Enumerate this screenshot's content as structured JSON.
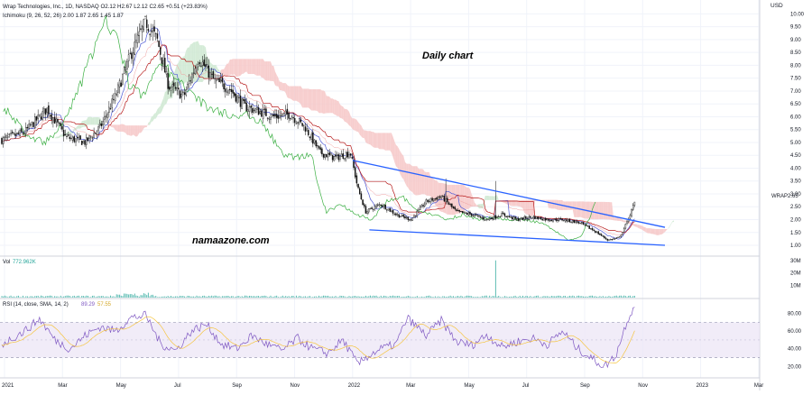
{
  "header": {
    "title_line": "Wrap Technologies, Inc., 1D, NASDAQ  O2.12  H2.67  L2.12  C2.65  +0.51 (+23.83%)",
    "ichimoku_line": "Ichimoku (9, 26, 52, 26)  2.00  1.87  2.65  1.45  1.87"
  },
  "annotations": {
    "chart_label": "Daily chart",
    "watermark": "namaazone.com",
    "price_tag": "WRAP"
  },
  "volume_panel": {
    "label": "Vol",
    "value": "772.962K"
  },
  "rsi_panel": {
    "label": "RSI (14, close, SMA, 14, 2)",
    "rsi_value": "89.29",
    "sma_value": "57.55"
  },
  "colors": {
    "candle": "#111111",
    "trendline": "#2962ff",
    "tenkan": "#4f5bd5",
    "kijun": "#b71c1c",
    "chikou": "#3cb043",
    "cloud_bear": "#f6c6c6",
    "cloud_bull": "#cde8d0",
    "rsi_line": "#7e57c2",
    "rsi_sma": "#f5c542",
    "rsi_band": "#ede7f6",
    "volume": "#26a69a"
  },
  "chart_data": {
    "type": "candlestick",
    "symbol": "WRAP",
    "yunit": "USD",
    "price_ticks": [
      "10.00",
      "9.50",
      "9.00",
      "8.50",
      "8.00",
      "7.50",
      "7.00",
      "6.50",
      "6.00",
      "5.50",
      "5.00",
      "4.50",
      "4.00",
      "3.50",
      "3.00",
      "2.50",
      "2.00",
      "1.50",
      "1.00"
    ],
    "price_range": [
      0.72,
      10.4
    ],
    "last_price": "2.65",
    "x_labels": [
      "2021",
      "Mar",
      "May",
      "Jul",
      "Sep",
      "Nov",
      "2022",
      "Mar",
      "May",
      "Jul",
      "Sep",
      "Nov",
      "2023",
      "Mar"
    ],
    "price_path": [
      {
        "x": 0.0,
        "y": 5.1
      },
      {
        "x": 0.03,
        "y": 5.4
      },
      {
        "x": 0.06,
        "y": 6.3
      },
      {
        "x": 0.085,
        "y": 5.2
      },
      {
        "x": 0.11,
        "y": 5.0
      },
      {
        "x": 0.13,
        "y": 5.6
      },
      {
        "x": 0.15,
        "y": 6.8
      },
      {
        "x": 0.17,
        "y": 8.4
      },
      {
        "x": 0.19,
        "y": 9.7
      },
      {
        "x": 0.205,
        "y": 9.0
      },
      {
        "x": 0.22,
        "y": 7.2
      },
      {
        "x": 0.24,
        "y": 6.8
      },
      {
        "x": 0.26,
        "y": 8.3
      },
      {
        "x": 0.28,
        "y": 7.4
      },
      {
        "x": 0.3,
        "y": 7.1
      },
      {
        "x": 0.32,
        "y": 6.4
      },
      {
        "x": 0.34,
        "y": 6.2
      },
      {
        "x": 0.36,
        "y": 6.0
      },
      {
        "x": 0.38,
        "y": 6.1
      },
      {
        "x": 0.4,
        "y": 5.6
      },
      {
        "x": 0.42,
        "y": 4.6
      },
      {
        "x": 0.44,
        "y": 4.4
      },
      {
        "x": 0.46,
        "y": 4.6
      },
      {
        "x": 0.47,
        "y": 3.2
      },
      {
        "x": 0.48,
        "y": 2.3
      },
      {
        "x": 0.5,
        "y": 2.6
      },
      {
        "x": 0.52,
        "y": 2.2
      },
      {
        "x": 0.54,
        "y": 2.0
      },
      {
        "x": 0.56,
        "y": 2.7
      },
      {
        "x": 0.58,
        "y": 2.9
      },
      {
        "x": 0.6,
        "y": 2.3
      },
      {
        "x": 0.62,
        "y": 2.2
      },
      {
        "x": 0.64,
        "y": 2.0
      },
      {
        "x": 0.66,
        "y": 2.2
      },
      {
        "x": 0.68,
        "y": 2.0
      },
      {
        "x": 0.7,
        "y": 2.1
      },
      {
        "x": 0.72,
        "y": 2.0
      },
      {
        "x": 0.74,
        "y": 2.0
      },
      {
        "x": 0.76,
        "y": 1.9
      },
      {
        "x": 0.78,
        "y": 1.6
      },
      {
        "x": 0.8,
        "y": 1.2
      },
      {
        "x": 0.815,
        "y": 1.3
      },
      {
        "x": 0.825,
        "y": 1.9
      },
      {
        "x": 0.835,
        "y": 2.65
      }
    ],
    "trendlines": [
      {
        "name": "upper",
        "from": {
          "x": 0.463,
          "y": 4.3
        },
        "to": {
          "x": 0.875,
          "y": 1.7
        }
      },
      {
        "name": "lower",
        "from": {
          "x": 0.485,
          "y": 1.6
        },
        "to": {
          "x": 0.875,
          "y": 1.0
        }
      }
    ],
    "volume": {
      "ticks": [
        "30M",
        "20M",
        "10M"
      ],
      "range": [
        0,
        32
      ],
      "spike": {
        "x": 0.652,
        "value": 30
      }
    },
    "rsi": {
      "ticks": [
        "80.00",
        "60.00",
        "40.00",
        "20.00"
      ],
      "range": [
        8,
        95
      ],
      "upper_band": 70,
      "lower_band": 30,
      "series": [
        {
          "x": 0.0,
          "y": 45
        },
        {
          "x": 0.03,
          "y": 60
        },
        {
          "x": 0.05,
          "y": 74
        },
        {
          "x": 0.07,
          "y": 50
        },
        {
          "x": 0.09,
          "y": 40
        },
        {
          "x": 0.11,
          "y": 55
        },
        {
          "x": 0.13,
          "y": 65
        },
        {
          "x": 0.15,
          "y": 60
        },
        {
          "x": 0.17,
          "y": 75
        },
        {
          "x": 0.19,
          "y": 78
        },
        {
          "x": 0.21,
          "y": 45
        },
        {
          "x": 0.23,
          "y": 38
        },
        {
          "x": 0.25,
          "y": 60
        },
        {
          "x": 0.27,
          "y": 68
        },
        {
          "x": 0.29,
          "y": 45
        },
        {
          "x": 0.31,
          "y": 40
        },
        {
          "x": 0.33,
          "y": 55
        },
        {
          "x": 0.35,
          "y": 45
        },
        {
          "x": 0.37,
          "y": 38
        },
        {
          "x": 0.39,
          "y": 52
        },
        {
          "x": 0.41,
          "y": 40
        },
        {
          "x": 0.43,
          "y": 35
        },
        {
          "x": 0.45,
          "y": 50
        },
        {
          "x": 0.47,
          "y": 22
        },
        {
          "x": 0.48,
          "y": 30
        },
        {
          "x": 0.5,
          "y": 40
        },
        {
          "x": 0.52,
          "y": 45
        },
        {
          "x": 0.535,
          "y": 75
        },
        {
          "x": 0.56,
          "y": 55
        },
        {
          "x": 0.58,
          "y": 72
        },
        {
          "x": 0.6,
          "y": 48
        },
        {
          "x": 0.62,
          "y": 44
        },
        {
          "x": 0.64,
          "y": 56
        },
        {
          "x": 0.66,
          "y": 42
        },
        {
          "x": 0.68,
          "y": 48
        },
        {
          "x": 0.7,
          "y": 52
        },
        {
          "x": 0.72,
          "y": 45
        },
        {
          "x": 0.74,
          "y": 60
        },
        {
          "x": 0.76,
          "y": 40
        },
        {
          "x": 0.78,
          "y": 28
        },
        {
          "x": 0.795,
          "y": 20
        },
        {
          "x": 0.81,
          "y": 32
        },
        {
          "x": 0.825,
          "y": 72
        },
        {
          "x": 0.835,
          "y": 89
        }
      ]
    }
  }
}
